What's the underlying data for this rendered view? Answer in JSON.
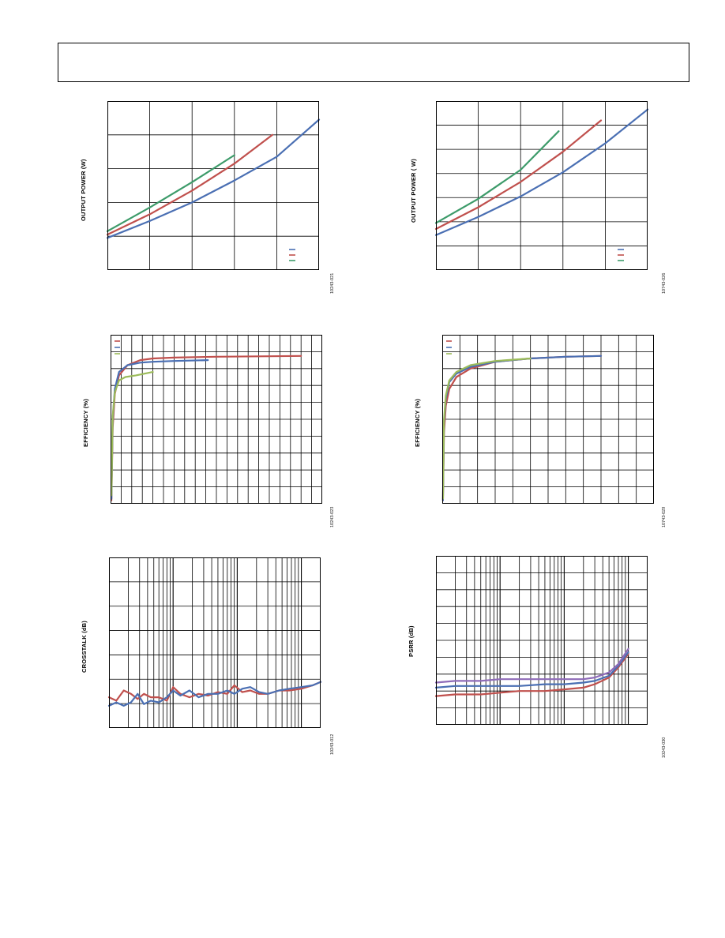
{
  "page": {
    "figures": [
      {
        "id": "fig-tl",
        "ylabel": "OUTPUT POWER (W)",
        "fig_id": "10243-021"
      },
      {
        "id": "fig-tr",
        "ylabel": "OUTPUT POWER ( W)",
        "fig_id": "10743-026"
      },
      {
        "id": "fig-ml",
        "ylabel": "EFFICIENCY (%)",
        "fig_id": "10243-023"
      },
      {
        "id": "fig-mr",
        "ylabel": "EFFICIENCY (%)",
        "fig_id": "10743-029"
      },
      {
        "id": "fig-bl",
        "ylabel": "CROSSTALK (dB)",
        "fig_id": "10243-012"
      },
      {
        "id": "fig-br",
        "ylabel": "PSRR (dB)",
        "fig_id": "10243-030"
      }
    ]
  },
  "chart_data": [
    {
      "id": "fig-tl",
      "type": "line",
      "xlim": [
        0,
        5
      ],
      "ylim": [
        0,
        5
      ],
      "grid": true,
      "gridX": 5,
      "gridY": 5,
      "legend": "bottom-right",
      "series": [
        {
          "color": "#4a6fb3",
          "x": [
            0,
            1,
            2,
            3,
            4,
            5
          ],
          "y": [
            0.95,
            1.45,
            2.0,
            2.65,
            3.35,
            4.45
          ]
        },
        {
          "color": "#c0504d",
          "x": [
            0,
            1,
            2,
            3,
            3.9
          ],
          "y": [
            1.05,
            1.65,
            2.35,
            3.15,
            4.0
          ]
        },
        {
          "color": "#3d9b6a",
          "x": [
            0,
            1,
            2,
            3
          ],
          "y": [
            1.15,
            1.85,
            2.6,
            3.4
          ]
        }
      ]
    },
    {
      "id": "fig-tr",
      "type": "line",
      "xlim": [
        0,
        5
      ],
      "ylim": [
        0,
        7
      ],
      "grid": true,
      "gridX": 5,
      "gridY": 7,
      "legend": "bottom-right",
      "series": [
        {
          "color": "#4a6fb3",
          "x": [
            0,
            1,
            2,
            3,
            4,
            5
          ],
          "y": [
            1.45,
            2.2,
            3.05,
            4.05,
            5.25,
            6.65
          ]
        },
        {
          "color": "#c0504d",
          "x": [
            0,
            1,
            2,
            3,
            3.9
          ],
          "y": [
            1.7,
            2.6,
            3.65,
            4.9,
            6.2
          ]
        },
        {
          "color": "#3d9b6a",
          "x": [
            0,
            1,
            2,
            2.9
          ],
          "y": [
            1.95,
            2.95,
            4.15,
            5.75
          ]
        }
      ]
    },
    {
      "id": "fig-ml",
      "type": "line",
      "xlim": [
        0,
        5
      ],
      "ylim": [
        0,
        100
      ],
      "grid": true,
      "gridX": 20,
      "gridY": 10,
      "legend": "top-left",
      "series": [
        {
          "color": "#c0504d",
          "x": [
            0.02,
            0.05,
            0.1,
            0.2,
            0.4,
            0.7,
            1,
            1.5,
            2.5,
            4.5
          ],
          "y": [
            2,
            45,
            65,
            76,
            82,
            85,
            86,
            86.5,
            87,
            87.5
          ]
        },
        {
          "color": "#4a6fb3",
          "x": [
            0.02,
            0.05,
            0.1,
            0.2,
            0.4,
            0.7,
            1,
            1.5,
            2.3
          ],
          "y": [
            3,
            50,
            68,
            78,
            82,
            83.5,
            84,
            84.5,
            85
          ]
        },
        {
          "color": "#9bbb59",
          "x": [
            0.02,
            0.05,
            0.1,
            0.2,
            0.35,
            0.6,
            1.0
          ],
          "y": [
            5,
            52,
            66,
            73,
            75,
            76,
            78
          ]
        }
      ]
    },
    {
      "id": "fig-mr",
      "type": "line",
      "xlim": [
        0,
        6
      ],
      "ylim": [
        0,
        100
      ],
      "grid": true,
      "gridX": 12,
      "gridY": 10,
      "legend": "top-left",
      "series": [
        {
          "color": "#c0504d",
          "x": [
            0.02,
            0.05,
            0.1,
            0.2,
            0.4,
            0.8,
            1.5,
            2.5,
            3.5,
            4.5
          ],
          "y": [
            2,
            42,
            58,
            68,
            75,
            80,
            84,
            86,
            87,
            87.5
          ]
        },
        {
          "color": "#4a6fb3",
          "x": [
            0.02,
            0.05,
            0.1,
            0.2,
            0.4,
            0.8,
            1.5,
            2.5,
            3.5,
            4.5
          ],
          "y": [
            2,
            48,
            62,
            72,
            77,
            81,
            84,
            86,
            87,
            87.5
          ]
        },
        {
          "color": "#9bbb59",
          "x": [
            0.02,
            0.05,
            0.1,
            0.2,
            0.4,
            0.8,
            1.5,
            2.5
          ],
          "y": [
            3,
            50,
            64,
            73,
            78,
            82,
            84.5,
            86
          ]
        }
      ]
    },
    {
      "id": "fig-bl",
      "type": "line",
      "xscale": "log",
      "xlim": [
        10,
        20000
      ],
      "ylim": [
        -100,
        0
      ],
      "grid": true,
      "gridY": 7,
      "series": [
        {
          "color": "#c0504d",
          "x": [
            10,
            13,
            17,
            22,
            28,
            35,
            45,
            60,
            80,
            100,
            130,
            180,
            250,
            350,
            500,
            700,
            900,
            1200,
            1600,
            2200,
            3000,
            4500,
            6500,
            10000,
            15000,
            20000
          ],
          "y": [
            -82,
            -84,
            -78,
            -80,
            -83,
            -80,
            -82,
            -82,
            -84,
            -76,
            -80,
            -82,
            -80,
            -81,
            -79,
            -80,
            -75,
            -79,
            -78,
            -80,
            -80,
            -78,
            -78,
            -77,
            -75,
            -73
          ]
        },
        {
          "color": "#4a6fb3",
          "x": [
            10,
            13,
            17,
            22,
            28,
            35,
            45,
            60,
            80,
            100,
            130,
            180,
            250,
            350,
            500,
            700,
            900,
            1200,
            1600,
            2200,
            3000,
            4500,
            6500,
            10000,
            15000,
            20000
          ],
          "y": [
            -87,
            -85,
            -87,
            -85,
            -80,
            -86,
            -84,
            -85,
            -82,
            -78,
            -81,
            -78,
            -82,
            -80,
            -80,
            -78,
            -80,
            -77,
            -76,
            -79,
            -80,
            -78,
            -77,
            -76,
            -75,
            -73
          ]
        }
      ]
    },
    {
      "id": "fig-br",
      "type": "line",
      "xscale": "log",
      "xlim": [
        10,
        20000
      ],
      "ylim": [
        -100,
        0
      ],
      "grid": true,
      "gridY": 10,
      "series": [
        {
          "color": "#c0504d",
          "x": [
            10,
            20,
            50,
            100,
            200,
            500,
            1000,
            2000,
            3000,
            5000,
            7000,
            10000
          ],
          "y": [
            -83,
            -82,
            -82,
            -81,
            -80,
            -80,
            -79,
            -78,
            -76,
            -72,
            -66,
            -58
          ]
        },
        {
          "color": "#4a6fb3",
          "x": [
            10,
            20,
            50,
            100,
            200,
            500,
            1000,
            2000,
            3000,
            5000,
            7000,
            10000
          ],
          "y": [
            -78,
            -77,
            -77,
            -77,
            -77,
            -76,
            -76,
            -75,
            -74,
            -71,
            -65,
            -57
          ]
        },
        {
          "color": "#8e6bb8",
          "x": [
            10,
            20,
            50,
            100,
            200,
            500,
            1000,
            2000,
            3000,
            5000,
            7000,
            10000
          ],
          "y": [
            -75,
            -74,
            -74,
            -73,
            -73,
            -73,
            -73,
            -73,
            -72,
            -69,
            -64,
            -55
          ]
        }
      ]
    }
  ]
}
